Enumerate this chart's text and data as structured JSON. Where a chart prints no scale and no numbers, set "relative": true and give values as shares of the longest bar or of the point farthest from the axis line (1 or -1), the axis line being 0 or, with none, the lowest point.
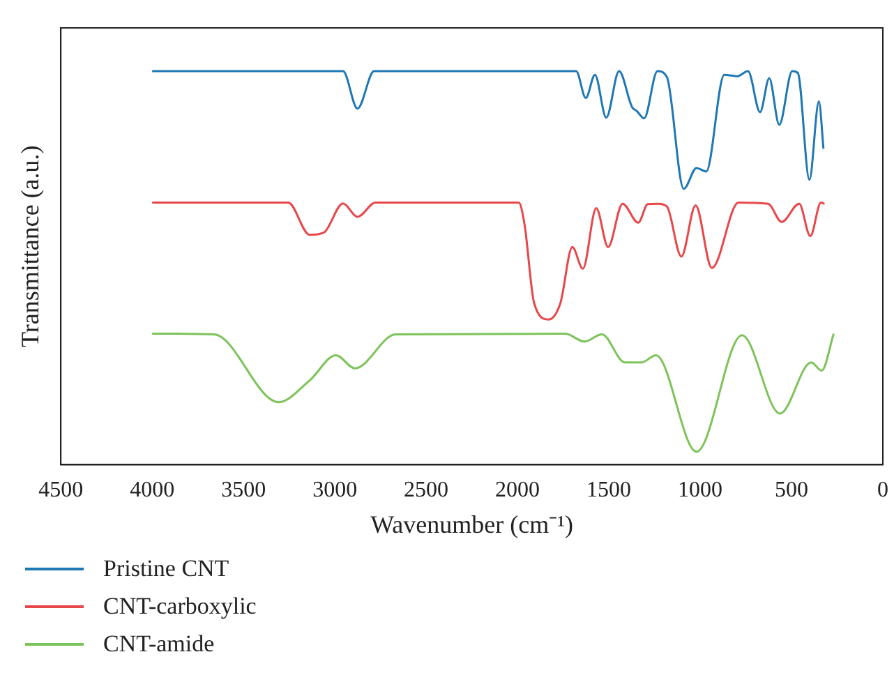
{
  "chart_data": {
    "type": "line",
    "relative": true,
    "xlabel": "Wavenumber (cm⁻¹)",
    "ylabel": "Transmittance (a.u.)",
    "xlim": [
      4500,
      0
    ],
    "xticks": [
      4500,
      4000,
      3500,
      3000,
      2500,
      2000,
      1500,
      1000,
      500,
      0
    ],
    "tick_labels": "x",
    "grid": false,
    "legend": "bottom",
    "marker": "none",
    "line_style": "solid",
    "series": [
      {
        "name": "Pristine CNT",
        "color": "#1f77b4",
        "x": [
          4000,
          2955,
          2876,
          2785,
          1679,
          1626,
          1576,
          1514,
          1444,
          1373,
          1347,
          1307,
          1234,
          1182,
          1090,
          1020,
          967,
          868,
          798,
          738,
          672,
          622,
          567,
          496,
          465,
          402,
          350,
          325
        ],
        "values": [
          1,
          1,
          0.905,
          1,
          1,
          0.932,
          0.991,
          0.882,
          1,
          0.909,
          0.899,
          0.88,
          1,
          0.985,
          0.701,
          0.754,
          0.745,
          0.991,
          0.987,
          1,
          0.896,
          0.982,
          0.864,
          1,
          0.995,
          0.724,
          0.923,
          0.803
        ]
      },
      {
        "name": "CNT-carboxylic",
        "color": "#e8474a",
        "x": [
          4000,
          3255,
          3138,
          3060,
          2955,
          2876,
          2777,
          1993,
          1961,
          1909,
          1830,
          1765,
          1700,
          1642,
          1569,
          1504,
          1425,
          1339,
          1287,
          1229,
          1182,
          1103,
          1025,
          936,
          790,
          628,
          554,
          458,
          397,
          339,
          319
        ],
        "values": [
          0.666,
          0.666,
          0.584,
          0.59,
          0.664,
          0.63,
          0.666,
          0.666,
          0.609,
          0.411,
          0.369,
          0.411,
          0.553,
          0.498,
          0.652,
          0.553,
          0.663,
          0.615,
          0.662,
          0.663,
          0.656,
          0.529,
          0.659,
          0.5,
          0.666,
          0.663,
          0.617,
          0.663,
          0.581,
          0.666,
          0.663
        ]
      },
      {
        "name": "CNT-amide",
        "color": "#7cc35a",
        "x": [
          4000,
          3661,
          3308,
          3138,
          2994,
          2890,
          2667,
          1739,
          1634,
          1538,
          1412,
          1321,
          1242,
          1020,
          771,
          563,
          392,
          335,
          269
        ],
        "values": [
          0.333,
          0.331,
          0.159,
          0.214,
          0.278,
          0.245,
          0.331,
          0.333,
          0.313,
          0.331,
          0.26,
          0.26,
          0.278,
          0.033,
          0.329,
          0.13,
          0.26,
          0.239,
          0.333
        ]
      }
    ]
  }
}
